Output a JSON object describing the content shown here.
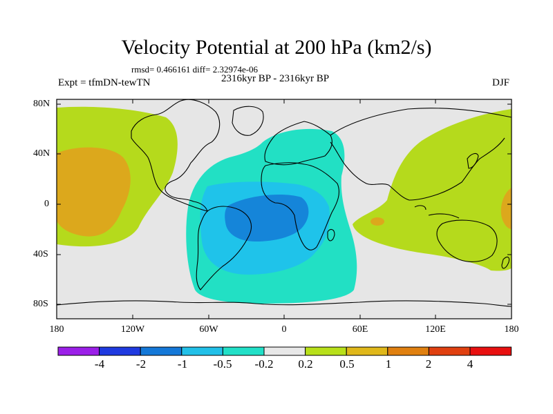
{
  "title": "Velocity Potential at 200 hPa (km2/s)",
  "rmsd_text": "rmsd= 0.466161 diff= 2.32974e-06",
  "experiment": "Expt = tfmDN-tewTN",
  "period": "2316kyr BP - 2316kyr BP",
  "season": "DJF",
  "lat_labels": [
    "80N",
    "40N",
    "0",
    "40S",
    "80S"
  ],
  "lon_labels": [
    "180",
    "120W",
    "60W",
    "0",
    "60E",
    "120E",
    "180"
  ],
  "colorbar": {
    "labels": [
      "-4",
      "-2",
      "-1",
      "-0.5",
      "-0.2",
      "0.2",
      "0.5",
      "1",
      "2",
      "4"
    ],
    "colors": [
      "#9b1fe8",
      "#1f3ae0",
      "#1478d8",
      "#22c0e8",
      "#22e0c8",
      "#e8e8e8",
      "#b8e01a",
      "#e0b81a",
      "#e08010",
      "#e04010",
      "#e81010"
    ]
  },
  "fill_colors": {
    "neutral": "#e6e6e6",
    "weak_pos": "#b5da1c",
    "mod_pos": "#dca81c",
    "weak_neg": "#22e0c4",
    "mod_neg": "#1fc3ea",
    "strong_neg": "#1585d9"
  }
}
